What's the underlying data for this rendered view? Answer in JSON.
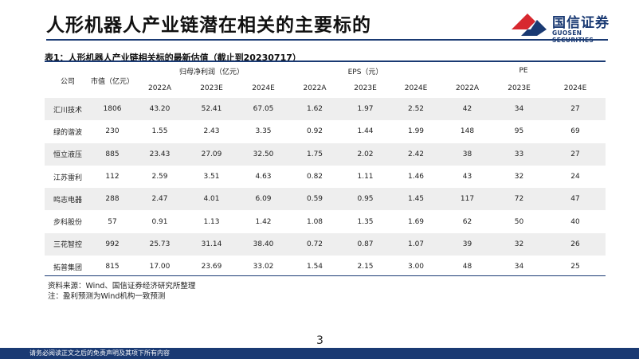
{
  "page": {
    "title": "人形机器人产业链潜在相关的主要标的",
    "page_number": "3",
    "footer": "请务必阅读正文之后的免责声明及其项下所有内容"
  },
  "logo": {
    "name_cn": "国信证券",
    "name_en": "GUOSEN SECURITIES",
    "colors": {
      "red": "#d7282f",
      "blue": "#1a3a73"
    }
  },
  "table": {
    "caption": "表1：人形机器人产业链相关标的最新估值（截止到20230717）",
    "col_company": "公司",
    "col_cap": "市值（亿元）",
    "groups": [
      "归母净利润（亿元）",
      "EPS（元）",
      "PE"
    ],
    "years": [
      "2022A",
      "2023E",
      "2024E"
    ],
    "rows": [
      {
        "company": "汇川技术",
        "cap": "1806",
        "np": [
          "43.20",
          "52.41",
          "67.05"
        ],
        "eps": [
          "1.62",
          "1.97",
          "2.52"
        ],
        "pe": [
          "42",
          "34",
          "27"
        ]
      },
      {
        "company": "绿的谐波",
        "cap": "230",
        "np": [
          "1.55",
          "2.43",
          "3.35"
        ],
        "eps": [
          "0.92",
          "1.44",
          "1.99"
        ],
        "pe": [
          "148",
          "95",
          "69"
        ]
      },
      {
        "company": "恒立液压",
        "cap": "885",
        "np": [
          "23.43",
          "27.09",
          "32.50"
        ],
        "eps": [
          "1.75",
          "2.02",
          "2.42"
        ],
        "pe": [
          "38",
          "33",
          "27"
        ]
      },
      {
        "company": "江苏雷利",
        "cap": "112",
        "np": [
          "2.59",
          "3.51",
          "4.63"
        ],
        "eps": [
          "0.82",
          "1.11",
          "1.46"
        ],
        "pe": [
          "43",
          "32",
          "24"
        ]
      },
      {
        "company": "鸣志电器",
        "cap": "288",
        "np": [
          "2.47",
          "4.01",
          "6.09"
        ],
        "eps": [
          "0.59",
          "0.95",
          "1.45"
        ],
        "pe": [
          "117",
          "72",
          "47"
        ]
      },
      {
        "company": "步科股份",
        "cap": "57",
        "np": [
          "0.91",
          "1.13",
          "1.42"
        ],
        "eps": [
          "1.08",
          "1.35",
          "1.69"
        ],
        "pe": [
          "62",
          "50",
          "40"
        ]
      },
      {
        "company": "三花智控",
        "cap": "992",
        "np": [
          "25.73",
          "31.14",
          "38.40"
        ],
        "eps": [
          "0.72",
          "0.87",
          "1.07"
        ],
        "pe": [
          "39",
          "32",
          "26"
        ]
      },
      {
        "company": "拓普集团",
        "cap": "815",
        "np": [
          "17.00",
          "23.69",
          "33.02"
        ],
        "eps": [
          "1.54",
          "2.15",
          "3.00"
        ],
        "pe": [
          "48",
          "34",
          "25"
        ]
      }
    ]
  },
  "source": {
    "line1": "资料来源：Wind、国信证券经济研究所整理",
    "line2": "注：盈利预测为Wind机构一致预测"
  }
}
